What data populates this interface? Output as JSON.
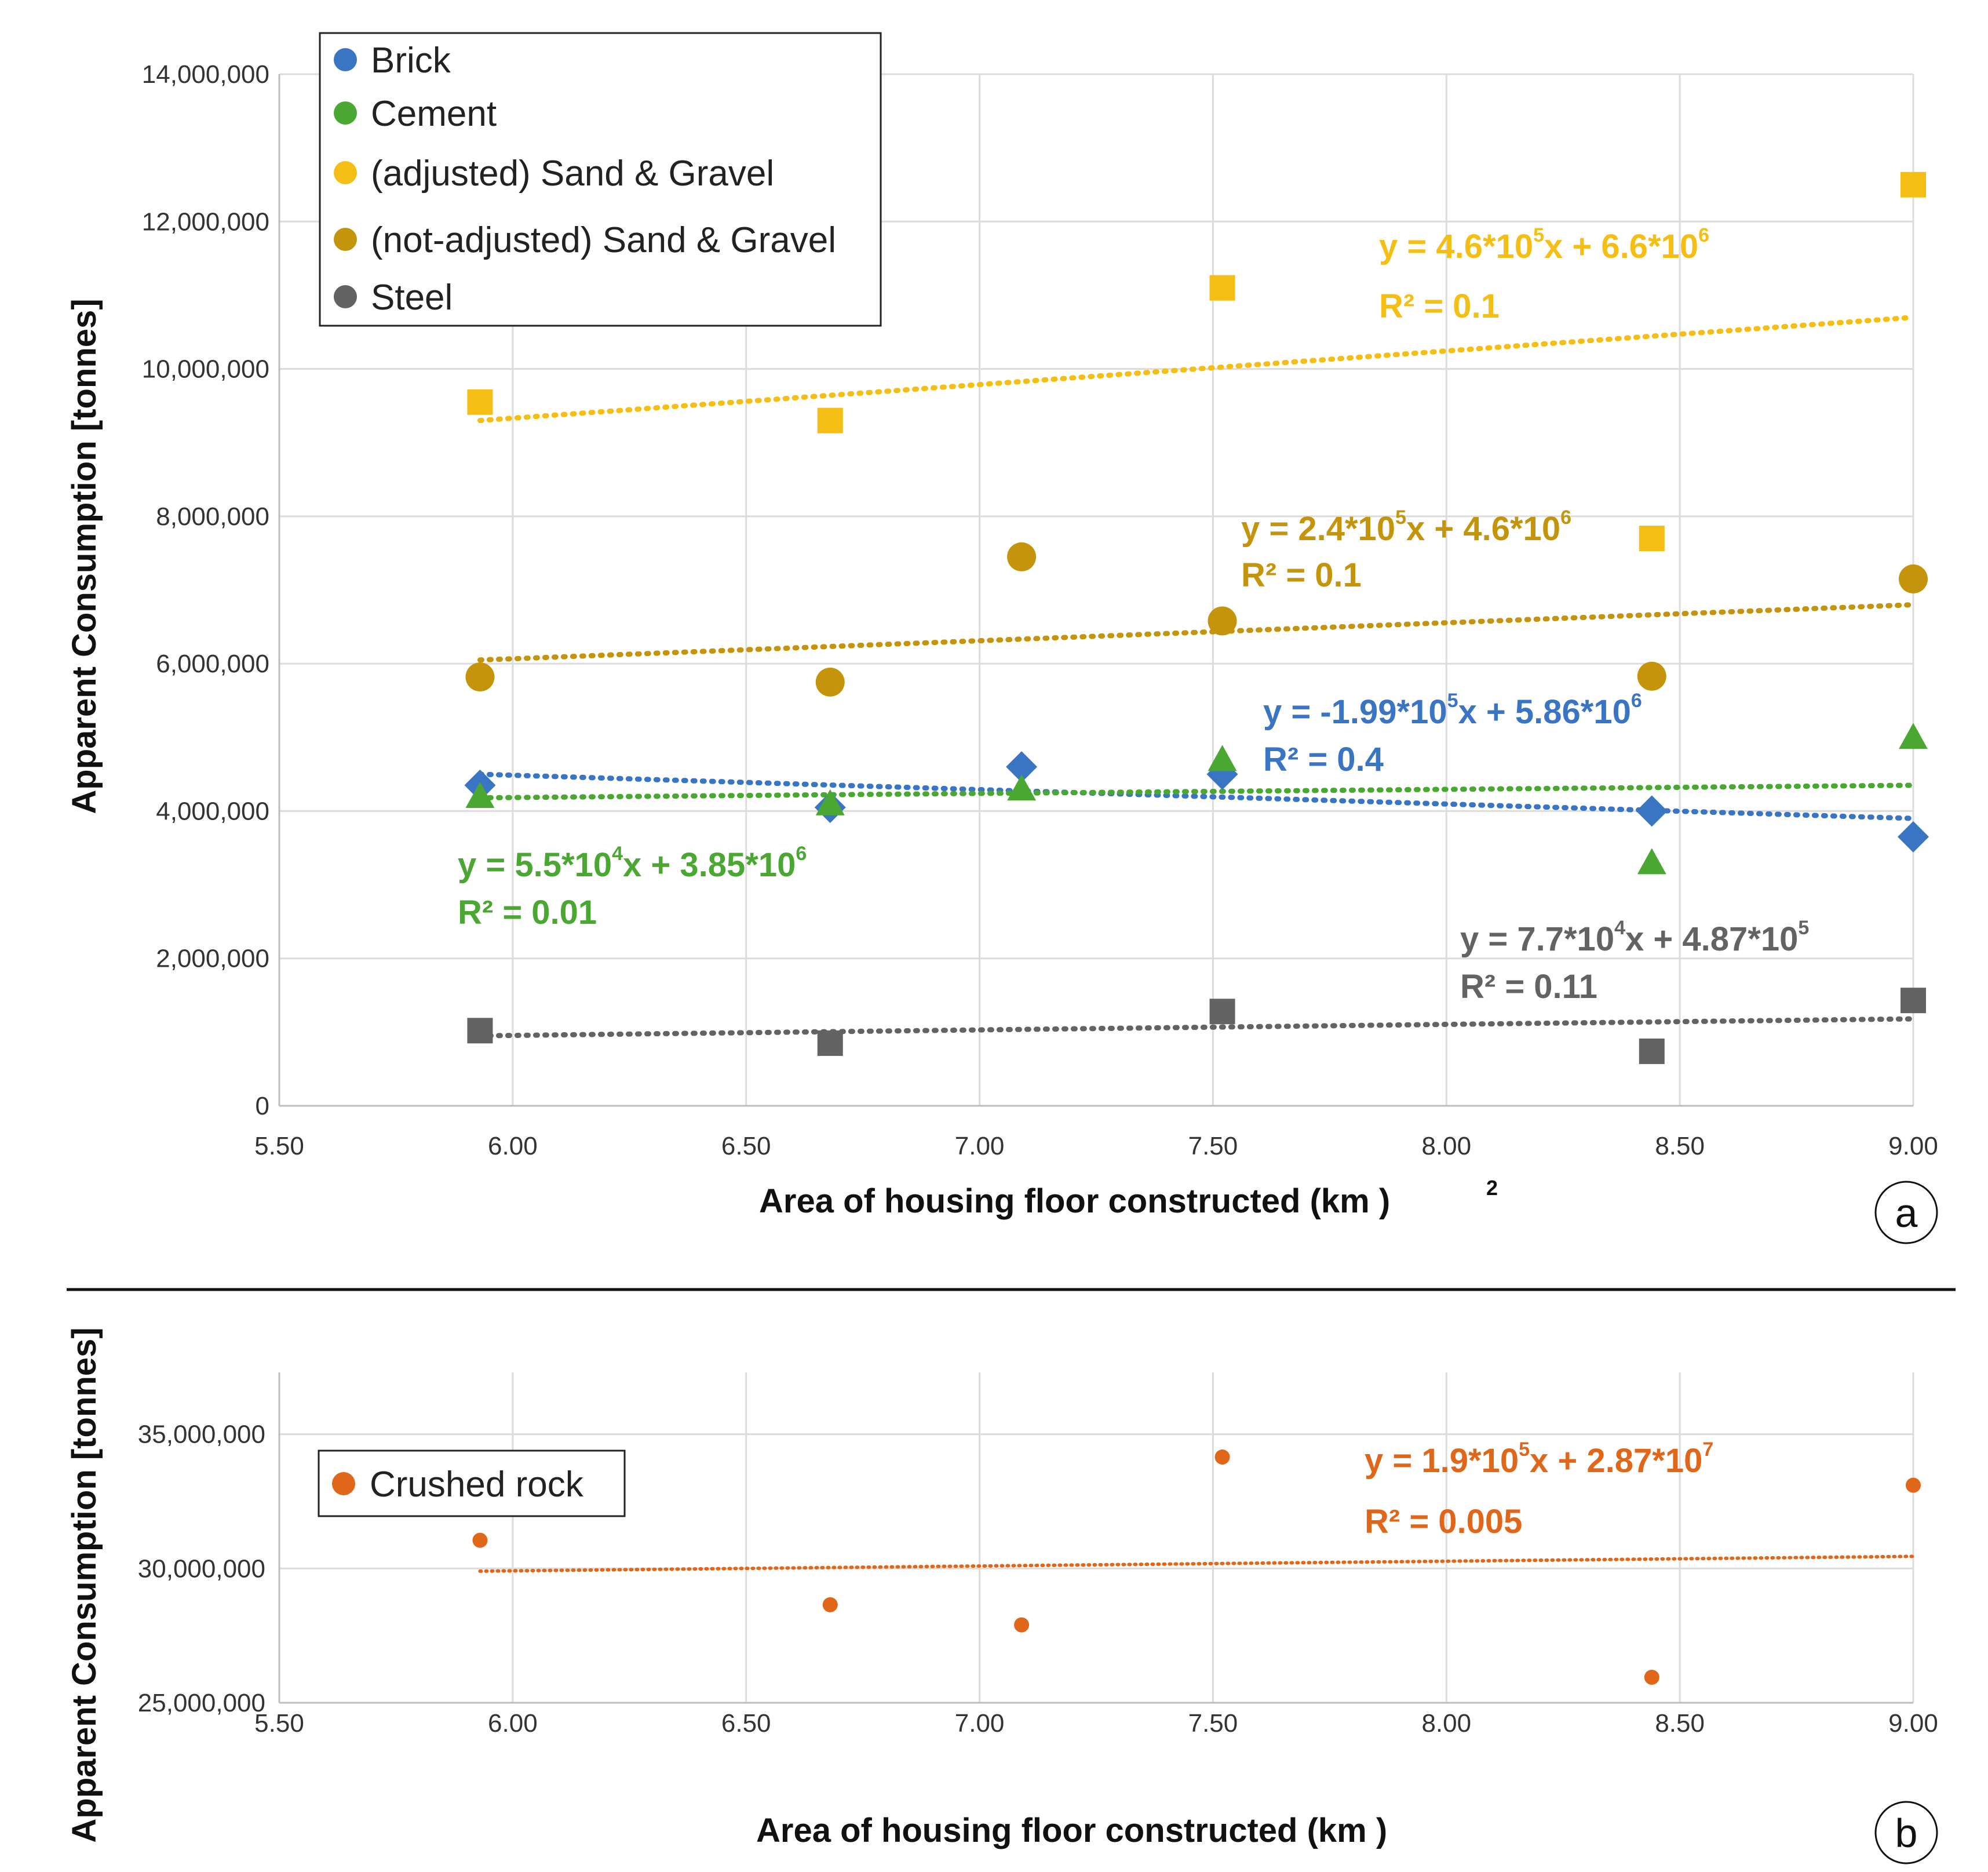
{
  "chart_data": [
    {
      "type": "scatter",
      "panel_label": "a",
      "xlabel": "Area of housing floor constructed (km )",
      "xlabel_sup": "2",
      "ylabel": "Apparent Consumption [tonnes]",
      "xlim": [
        5.5,
        9.0
      ],
      "ylim": [
        0,
        14000000
      ],
      "xticks": [
        "5.50",
        "6.00",
        "6.50",
        "7.00",
        "7.50",
        "8.00",
        "8.50",
        "9.00"
      ],
      "yticks": [
        "0",
        "2,000,000",
        "4,000,000",
        "6,000,000",
        "8,000,000",
        "10,000,000",
        "12,000,000",
        "14,000,000"
      ],
      "grid": true,
      "legend_position": "top-left",
      "legend": [
        "Brick",
        "Cement",
        "(adjusted) Sand & Gravel",
        "(not-adjusted) Sand & Gravel",
        "Steel"
      ],
      "series": [
        {
          "name": "Brick",
          "color": "#3a75c4",
          "marker": "diamond",
          "x": [
            5.93,
            6.68,
            7.09,
            7.52,
            8.44,
            9.0
          ],
          "y": [
            4350000,
            4050000,
            4600000,
            4500000,
            4000000,
            3650000
          ],
          "trend": [
            5.93,
            4500000,
            9.0,
            3900000
          ],
          "eq": [
            "y = -1.99*10",
            "5",
            "x + 5.86*10",
            "6"
          ],
          "r2": "R² = 0.4"
        },
        {
          "name": "Cement",
          "color": "#4aa832",
          "marker": "triangle",
          "x": [
            5.93,
            6.68,
            7.09,
            7.52,
            8.44,
            9.0
          ],
          "y": [
            4200000,
            4100000,
            4300000,
            4700000,
            3300000,
            5000000
          ],
          "trend": [
            5.93,
            4180000,
            9.0,
            4350000
          ],
          "eq": [
            "y = 5.5*10",
            "4",
            "x + 3.85*10",
            "6"
          ],
          "r2": "R² = 0.01"
        },
        {
          "name": "(adjusted) Sand & Gravel",
          "color": "#f5be14",
          "marker": "square",
          "x": [
            5.93,
            6.68,
            7.52,
            8.44,
            9.0
          ],
          "y": [
            9550000,
            9300000,
            11100000,
            7700000,
            12500000
          ],
          "trend": [
            5.93,
            9300000,
            9.0,
            10700000
          ],
          "eq": [
            "y = 4.6*10",
            "5",
            "x + 6.6*10",
            "6"
          ],
          "r2": "R² = 0.1"
        },
        {
          "name": "(not-adjusted) Sand & Gravel",
          "color": "#c4950c",
          "marker": "circle",
          "x": [
            5.93,
            6.68,
            7.09,
            7.52,
            8.44,
            9.0
          ],
          "y": [
            5820000,
            5750000,
            7450000,
            6580000,
            5830000,
            7150000
          ],
          "trend": [
            5.93,
            6050000,
            9.0,
            6800000
          ],
          "eq": [
            "y = 2.4*10",
            "5",
            "x + 4.6*10",
            "6"
          ],
          "r2": "R² = 0.1"
        },
        {
          "name": "Steel",
          "color": "#636363",
          "marker": "square",
          "x": [
            5.93,
            6.68,
            7.52,
            8.44,
            9.0
          ],
          "y": [
            1020000,
            850000,
            1280000,
            740000,
            1430000
          ],
          "trend": [
            5.93,
            950000,
            9.0,
            1180000
          ],
          "eq": [
            "y = 7.7*10",
            "4",
            "x + 4.87*10",
            "5"
          ],
          "r2": "R² = 0.11"
        }
      ]
    },
    {
      "type": "scatter",
      "panel_label": "b",
      "xlabel": "Area of housing floor constructed (km )",
      "ylabel": "Apparent Consumption [tonnes]",
      "xlim": [
        5.5,
        9.0
      ],
      "ylim": [
        25000000,
        37300000
      ],
      "xticks": [
        "5.50",
        "6.00",
        "6.50",
        "7.00",
        "7.50",
        "8.00",
        "8.50",
        "9.00"
      ],
      "yticks": [
        "25,000,000",
        "30,000,000",
        "35,000,000"
      ],
      "ytick_values": [
        25000000,
        30000000,
        35000000
      ],
      "grid": true,
      "legend_position": "top-left",
      "legend": [
        "Crushed rock"
      ],
      "series": [
        {
          "name": "Crushed rock",
          "color": "#e0661a",
          "marker": "circle",
          "x": [
            5.93,
            6.68,
            7.09,
            7.52,
            8.44,
            9.0
          ],
          "y": [
            31050000,
            28650000,
            27900000,
            34150000,
            25950000,
            33100000
          ],
          "trend": [
            5.93,
            29900000,
            9.0,
            30450000
          ],
          "eq": [
            "y = 1.9*10",
            "5",
            "x + 2.87*10",
            "7"
          ],
          "r2": "R² = 0.005"
        }
      ]
    }
  ]
}
